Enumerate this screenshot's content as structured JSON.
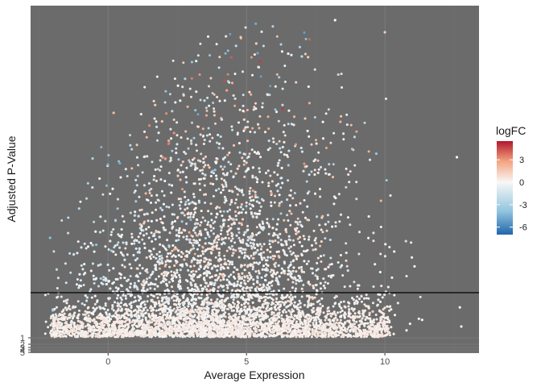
{
  "chart_data": {
    "type": "scatter",
    "title": "",
    "xlabel": "Average Expression",
    "ylabel": "Adjusted P-Value",
    "xlim": [
      -2.8,
      13.4
    ],
    "x_ticks": [
      0,
      5,
      10
    ],
    "x_tick_labels": [
      "0",
      "5",
      "10"
    ],
    "y_axis": "reversed log scale (small adjusted p-values toward the top)",
    "y_tick_labels": [
      "1",
      "2",
      "3",
      "4",
      "5"
    ],
    "threshold_line": "horizontal black line across the panel at the significance cutoff",
    "color_by": "logFC",
    "color_scale": {
      "type": "diverging",
      "stops": [
        "#2166ac",
        "#92c5de",
        "#f7f7f7",
        "#f4a582",
        "#b2182b"
      ],
      "min": -7,
      "max": 5.5
    },
    "legend": {
      "title": "logFC",
      "position": "right",
      "ticks": [
        3,
        0,
        -3,
        -6
      ],
      "tick_labels": [
        "3",
        "0",
        "-3",
        "-6"
      ]
    },
    "panel_background": "#6b6b6b",
    "grid": true,
    "point_count_estimate": 15000,
    "density_note": "points densest just below the threshold line between x=0 and x=8; spread widens with expression",
    "sample_points": [
      {
        "x": 5.5,
        "y_label": "top of panel",
        "logFC": 4.8
      },
      {
        "x": 4.2,
        "y_label": "upper",
        "logFC": 4.5
      },
      {
        "x": 7.0,
        "y_label": "upper",
        "logFC": -2.0
      },
      {
        "x": 12.6,
        "y_label": "mid",
        "logFC": 0
      },
      {
        "x": -2.0,
        "y_label": "near threshold",
        "logFC": -3.0
      }
    ]
  }
}
